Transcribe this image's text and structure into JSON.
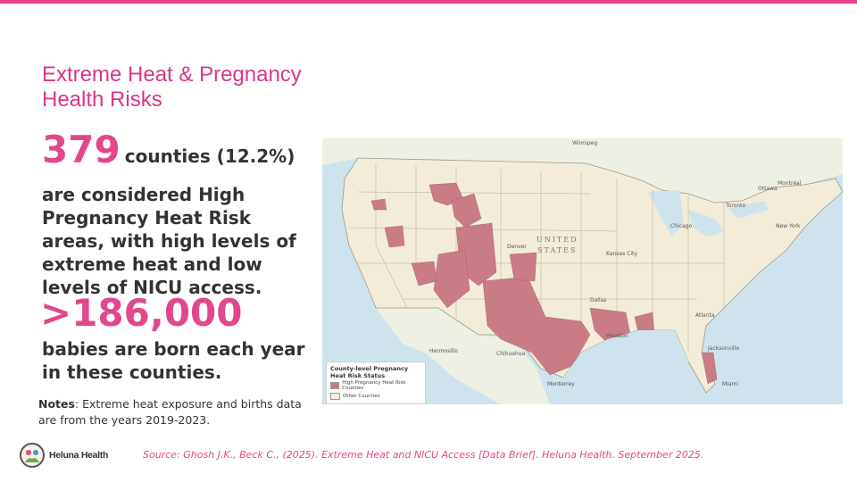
{
  "title": "Extreme Heat & Pregnancy Health Risks",
  "stat1": {
    "number": "379",
    "suffix": "counties (12.2%)",
    "description": "are considered High Pregnancy Heat Risk areas, with high levels of extreme heat and low levels of NICU access."
  },
  "stat2": {
    "number": ">186,000",
    "description": "babies are born each year in these counties."
  },
  "notes": {
    "label": "Notes",
    "text": ": Extreme heat exposure and births data are from the years 2019-2023."
  },
  "map": {
    "country_label_line1": "UNITED",
    "country_label_line2": "STATES",
    "legend": {
      "title": "County-level Pregnancy Heat Risk Status",
      "items": [
        {
          "label": "High Pregnancy Heat Risk Counties",
          "color": "#c97b86"
        },
        {
          "label": "Other Counties",
          "color": "#f3ecd8"
        }
      ]
    },
    "places": {
      "winnipeg": "Winnipeg",
      "ottawa": "Ottawa",
      "montreal": "Montréal",
      "toronto": "Toronto",
      "chicago": "Chicago",
      "denver": "Denver",
      "kansas_city": "Kansas City",
      "dallas": "Dallas",
      "houston": "Houston",
      "hermosillo": "Hermosillo",
      "chihuahua": "Chihuahua",
      "monterrey": "Monterrey",
      "new_york": "New York",
      "atlanta": "Atlanta",
      "miami": "Miami",
      "jacksonville": "Jacksonville"
    }
  },
  "logo": {
    "text": "Heluna Health"
  },
  "source": "Source: Ghosh J.K., Beck C., (2025). Extreme Heat and NICU Access [Data Brief]. Heluna Health. September 2025.",
  "colors": {
    "accent": "#e2478e",
    "high_risk": "#c97b86",
    "other": "#f3ecd8",
    "water": "#cfe3ef"
  }
}
